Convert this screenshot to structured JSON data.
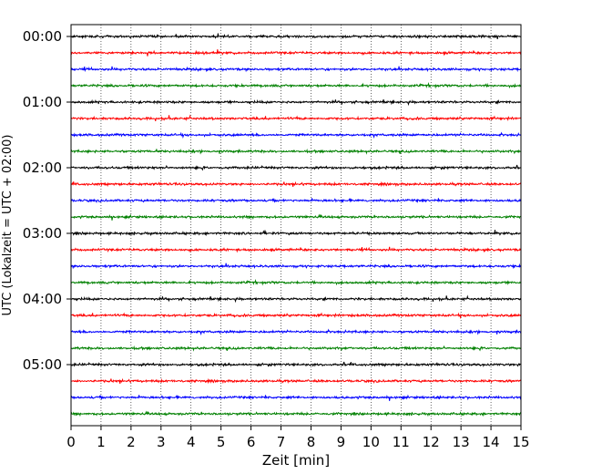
{
  "chart_data": {
    "type": "line",
    "title": "",
    "xlabel": "Zeit  [min]",
    "ylabel": "UTC (Lokalzeit = UTC + 02:00)",
    "xlim": [
      0,
      15
    ],
    "x_ticks": [
      0,
      1,
      2,
      3,
      4,
      5,
      6,
      7,
      8,
      9,
      10,
      11,
      12,
      13,
      14,
      15
    ],
    "y_tick_labels": [
      "00:00",
      "01:00",
      "02:00",
      "03:00",
      "04:00",
      "05:00"
    ],
    "trace_interval_min": 15,
    "trace_count": 24,
    "trace_colors": [
      "#000000",
      "#ff0000",
      "#0000ff",
      "#008000"
    ],
    "grid": "vertical dotted lines at each minute",
    "legend": "none"
  }
}
